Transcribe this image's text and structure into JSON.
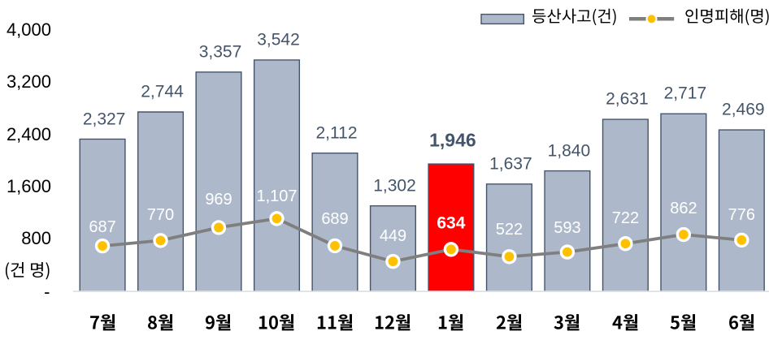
{
  "chart_data": {
    "type": "combo_bar_line",
    "title": "",
    "categories": [
      "7월",
      "8월",
      "9월",
      "10월",
      "11월",
      "12월",
      "1월",
      "2월",
      "3월",
      "4월",
      "5월",
      "6월"
    ],
    "series": [
      {
        "name": "등산사고(건)",
        "type": "bar",
        "values": [
          2327,
          2744,
          3357,
          3542,
          2112,
          1302,
          1946,
          1637,
          1840,
          2631,
          2717,
          2469
        ],
        "labels": [
          "2,327",
          "2,744",
          "3,357",
          "3,542",
          "2,112",
          "1,302",
          "1,946",
          "1,637",
          "1,840",
          "2,631",
          "2,717",
          "2,469"
        ]
      },
      {
        "name": "인명피해(명)",
        "type": "line",
        "values": [
          687,
          770,
          969,
          1107,
          689,
          449,
          634,
          522,
          593,
          722,
          862,
          776
        ],
        "labels": [
          "687",
          "770",
          "969",
          "1,107",
          "689",
          "449",
          "634",
          "522",
          "593",
          "722",
          "862",
          "776"
        ]
      }
    ],
    "highlight": {
      "index": 6,
      "category": "1월",
      "bar_label": "1,946",
      "line_label": "634",
      "bar_color": "#FF0000"
    },
    "y_axis": {
      "ticks": [
        "4,000",
        "3,200",
        "2,400",
        "1,600",
        "800"
      ],
      "tick_values": [
        4000,
        3200,
        2400,
        1600,
        800
      ],
      "zero_label": "-",
      "unit_label": "(건 명)",
      "range": [
        0,
        4000
      ]
    },
    "x_axis": {
      "label": ""
    },
    "legend": {
      "position": "top-right",
      "items": [
        {
          "label": "등산사고(건)",
          "swatch": "bar"
        },
        {
          "label": "인명피해(명)",
          "swatch": "line-marker"
        }
      ]
    },
    "gridlines": false,
    "colors": {
      "bar_fill": "#ADB9CA",
      "bar_border": "#44546A",
      "highlight_bar_fill": "#FF0000",
      "line": "#7F7F7F",
      "marker_fill": "#FFC000",
      "marker_ring": "#FFFFFF",
      "bar_label": "#44546A",
      "line_label": "#FFFFFF",
      "axis_text": "#000000",
      "axis_line": "#D9DEE7"
    }
  }
}
